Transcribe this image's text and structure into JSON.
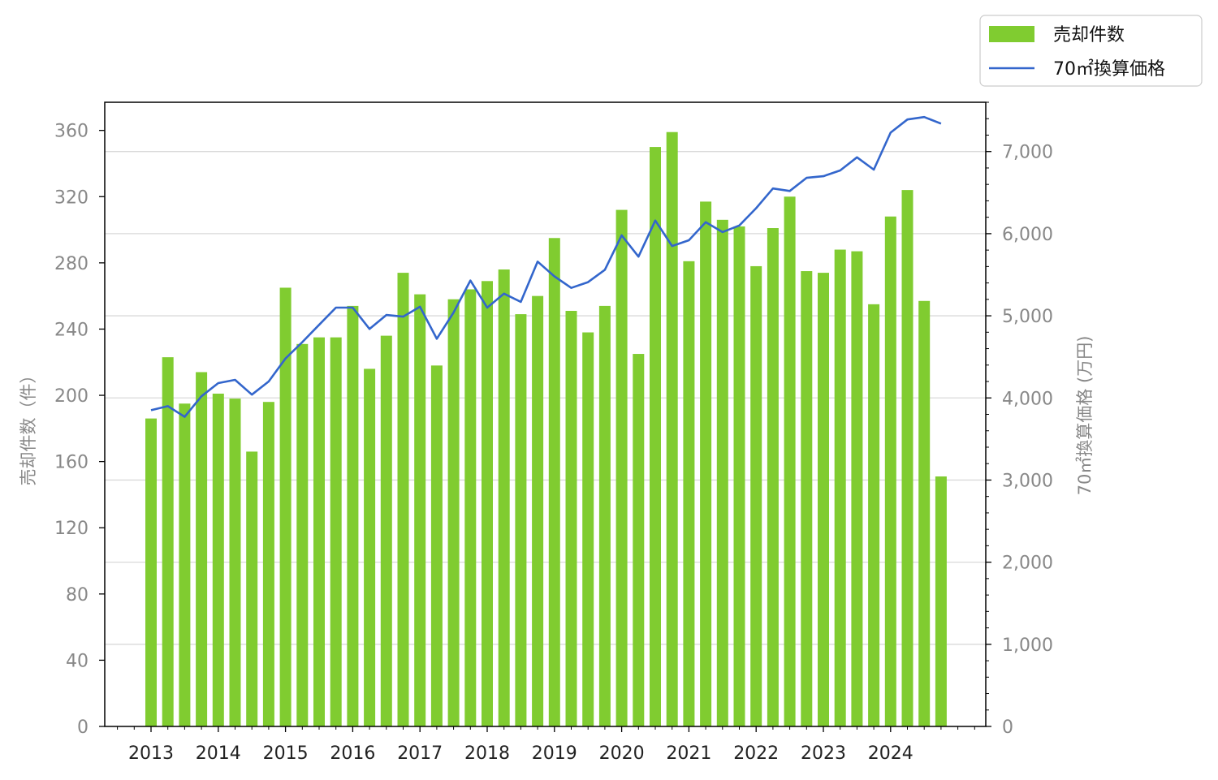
{
  "chart_data": {
    "type": "bar",
    "ylabel": "売却件数（件）",
    "y2label": "70㎡換算価格 (万円)",
    "ylim": [
      0,
      377
    ],
    "y2lim": [
      0,
      7600
    ],
    "yticks": [
      0,
      40,
      80,
      120,
      160,
      200,
      240,
      280,
      320,
      360
    ],
    "y2ticks": [
      0,
      1000,
      2000,
      3000,
      4000,
      5000,
      6000,
      7000
    ],
    "y2tick_labels": [
      "0",
      "1,000",
      "2,000",
      "3,000",
      "4,000",
      "5,000",
      "6,000",
      "7,000"
    ],
    "xticks": [
      "2013",
      "2014",
      "2015",
      "2016",
      "2017",
      "2018",
      "2019",
      "2020",
      "2021",
      "2022",
      "2023",
      "2024"
    ],
    "grid": "horizontal (right axis)",
    "legend_position": "top-right (outside)",
    "colors": {
      "bar": "#80cc30",
      "line": "#3366cc"
    },
    "series": [
      {
        "name": "売却件数",
        "type": "bar",
        "axis": "left",
        "values": [
          186,
          223,
          195,
          214,
          201,
          198,
          166,
          196,
          265,
          231,
          235,
          235,
          254,
          216,
          236,
          274,
          261,
          218,
          258,
          264,
          269,
          276,
          249,
          260,
          295,
          251,
          238,
          254,
          312,
          225,
          350,
          359,
          281,
          317,
          306,
          302,
          278,
          301,
          320,
          275,
          274,
          288,
          287,
          255,
          308,
          324,
          257,
          151
        ]
      },
      {
        "name": "70㎡換算価格",
        "type": "line",
        "axis": "right",
        "values": [
          3850,
          3900,
          3770,
          4020,
          4180,
          4220,
          4040,
          4200,
          4480,
          4680,
          4890,
          5100,
          5100,
          4840,
          5010,
          4990,
          5110,
          4720,
          5040,
          5430,
          5100,
          5270,
          5170,
          5660,
          5480,
          5340,
          5410,
          5560,
          5980,
          5720,
          6160,
          5850,
          5920,
          6140,
          6020,
          6100,
          6310,
          6550,
          6520,
          6680,
          6700,
          6770,
          6930,
          6780,
          7230,
          7390,
          7420,
          7340
        ]
      }
    ]
  }
}
